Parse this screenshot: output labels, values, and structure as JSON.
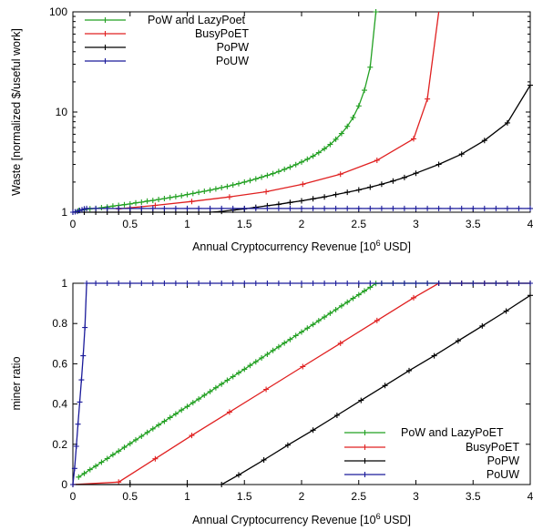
{
  "chart_data": [
    {
      "type": "line",
      "xlabel": "Annual Cryptocurrency Revenue [10",
      "xlabel_sup": "6",
      "xlabel_tail": " USD]",
      "ylabel": "Waste [normalized $/useful work]",
      "xlim": [
        0,
        4
      ],
      "ylim": [
        1,
        100
      ],
      "yscale": "log",
      "grid": false,
      "legend_position": "top-left",
      "x_ticks": [
        "0",
        "0.5",
        "1",
        "1.5",
        "2",
        "2.5",
        "3",
        "3.5",
        "4"
      ],
      "y_ticks": [
        "1",
        "10",
        "100"
      ],
      "series": [
        {
          "name": "PoW and LazyPoet",
          "color": "#22a022",
          "x": [
            0.05,
            0.1,
            0.15,
            0.2,
            0.25,
            0.3,
            0.35,
            0.4,
            0.45,
            0.5,
            0.55,
            0.6,
            0.65,
            0.7,
            0.75,
            0.8,
            0.85,
            0.9,
            0.95,
            1.0,
            1.05,
            1.1,
            1.15,
            1.2,
            1.25,
            1.3,
            1.35,
            1.4,
            1.45,
            1.5,
            1.55,
            1.6,
            1.65,
            1.7,
            1.75,
            1.8,
            1.85,
            1.9,
            1.95,
            2.0,
            2.05,
            2.1,
            2.15,
            2.2,
            2.25,
            2.3,
            2.35,
            2.4,
            2.45,
            2.5,
            2.55,
            2.6,
            2.65
          ],
          "y": [
            1.04,
            1.06,
            1.08,
            1.09,
            1.11,
            1.13,
            1.15,
            1.17,
            1.19,
            1.21,
            1.24,
            1.26,
            1.29,
            1.31,
            1.34,
            1.37,
            1.4,
            1.43,
            1.46,
            1.5,
            1.54,
            1.58,
            1.62,
            1.66,
            1.71,
            1.76,
            1.81,
            1.87,
            1.93,
            2.0,
            2.07,
            2.15,
            2.24,
            2.33,
            2.43,
            2.55,
            2.68,
            2.82,
            2.98,
            3.17,
            3.38,
            3.63,
            3.93,
            4.3,
            4.75,
            5.35,
            6.1,
            7.2,
            8.8,
            11.5,
            16.5,
            28,
            100
          ]
        },
        {
          "name": "BusyPoET",
          "color": "#e02020",
          "x": [
            0.4,
            0.72,
            1.04,
            1.37,
            1.69,
            2.01,
            2.34,
            2.66,
            2.98,
            3.1
          ],
          "y": [
            1.08,
            1.17,
            1.28,
            1.42,
            1.6,
            1.9,
            2.4,
            3.3,
            5.4,
            13.5
          ],
          "x_end": [
            3.1,
            3.2
          ],
          "y_end": [
            13.5,
            100
          ]
        },
        {
          "name": "PoPW",
          "color": "#000000",
          "x": [
            0.0,
            0.1,
            0.2,
            0.3,
            0.4,
            0.5,
            0.6,
            0.7,
            0.8,
            0.9,
            1.0,
            1.1,
            1.2,
            1.3,
            1.4,
            1.5,
            1.6,
            1.7,
            1.8,
            1.9,
            2.0,
            2.1,
            2.2,
            2.3,
            2.4,
            2.5,
            2.6,
            2.7,
            2.8,
            2.9,
            3.0,
            3.2,
            3.4,
            3.6,
            3.8,
            4.0
          ],
          "y": [
            1.0,
            1.0,
            1.0,
            1.0,
            1.0,
            1.0,
            1.0,
            1.0,
            1.0,
            1.0,
            1.0,
            1.0,
            1.0,
            1.02,
            1.05,
            1.08,
            1.12,
            1.16,
            1.2,
            1.25,
            1.3,
            1.36,
            1.42,
            1.5,
            1.58,
            1.67,
            1.78,
            1.9,
            2.05,
            2.22,
            2.45,
            3.0,
            3.8,
            5.2,
            7.8,
            18.5
          ]
        },
        {
          "name": "PoUW",
          "color": "#1a1a9a",
          "x": [
            0.0,
            0.02,
            0.04,
            0.06,
            0.08,
            0.1,
            0.12,
            0.2,
            0.3,
            0.4,
            0.5,
            0.6,
            0.7,
            0.8,
            0.9,
            1.0,
            1.1,
            1.2,
            1.3,
            1.4,
            1.5,
            1.6,
            1.7,
            1.8,
            1.9,
            2.0,
            2.1,
            2.2,
            2.3,
            2.4,
            2.5,
            2.6,
            2.7,
            2.8,
            2.9,
            3.0,
            3.1,
            3.2,
            3.3,
            3.4,
            3.5,
            3.6,
            3.7,
            3.8,
            3.9,
            4.0
          ],
          "y": [
            1.0,
            1.01,
            1.02,
            1.04,
            1.06,
            1.08,
            1.09,
            1.09,
            1.09,
            1.09,
            1.09,
            1.09,
            1.09,
            1.09,
            1.09,
            1.09,
            1.09,
            1.09,
            1.09,
            1.09,
            1.09,
            1.09,
            1.09,
            1.09,
            1.09,
            1.09,
            1.09,
            1.09,
            1.09,
            1.09,
            1.09,
            1.09,
            1.09,
            1.09,
            1.09,
            1.09,
            1.09,
            1.09,
            1.09,
            1.09,
            1.09,
            1.09,
            1.09,
            1.09,
            1.09,
            1.09
          ]
        }
      ]
    },
    {
      "type": "line",
      "xlabel": "Annual Cryptocurrency Revenue [10",
      "xlabel_sup": "6",
      "xlabel_tail": " USD]",
      "ylabel": "miner ratio",
      "xlim": [
        0,
        4
      ],
      "ylim": [
        0,
        1
      ],
      "yscale": "linear",
      "grid": false,
      "legend_position": "bottom-right",
      "x_ticks": [
        "0",
        "0.5",
        "1",
        "1.5",
        "2",
        "2.5",
        "3",
        "3.5",
        "4"
      ],
      "y_ticks": [
        "0",
        "0.2",
        "0.4",
        "0.6",
        "0.8",
        "1"
      ],
      "series": [
        {
          "name": "PoW and LazyPoET",
          "color": "#22a022",
          "x": [
            0.05,
            0.1,
            0.15,
            0.2,
            0.25,
            0.3,
            0.35,
            0.4,
            0.45,
            0.5,
            0.55,
            0.6,
            0.65,
            0.7,
            0.75,
            0.8,
            0.85,
            0.9,
            0.95,
            1.0,
            1.05,
            1.1,
            1.15,
            1.2,
            1.25,
            1.3,
            1.35,
            1.4,
            1.45,
            1.5,
            1.55,
            1.6,
            1.65,
            1.7,
            1.75,
            1.8,
            1.85,
            1.9,
            1.95,
            2.0,
            2.05,
            2.1,
            2.15,
            2.2,
            2.25,
            2.3,
            2.35,
            2.4,
            2.45,
            2.5,
            2.55,
            2.6,
            2.65,
            2.7,
            2.8,
            2.9,
            3.0,
            3.1,
            3.2,
            3.3,
            3.4,
            3.5,
            3.6,
            3.7,
            3.8,
            3.9,
            4.0
          ],
          "y": [
            0.037,
            0.055,
            0.074,
            0.092,
            0.111,
            0.129,
            0.148,
            0.166,
            0.185,
            0.203,
            0.222,
            0.24,
            0.259,
            0.277,
            0.296,
            0.314,
            0.333,
            0.351,
            0.37,
            0.388,
            0.407,
            0.425,
            0.444,
            0.462,
            0.481,
            0.499,
            0.518,
            0.536,
            0.555,
            0.573,
            0.592,
            0.61,
            0.629,
            0.647,
            0.666,
            0.684,
            0.703,
            0.721,
            0.74,
            0.758,
            0.777,
            0.795,
            0.814,
            0.832,
            0.851,
            0.869,
            0.888,
            0.906,
            0.925,
            0.943,
            0.962,
            0.98,
            0.999,
            1.0,
            1.0,
            1.0,
            1.0,
            1.0,
            1.0,
            1.0,
            1.0,
            1.0,
            1.0,
            1.0,
            1.0,
            1.0,
            1.0
          ]
        },
        {
          "name": "BusyPoET",
          "color": "#e02020",
          "x": [
            0.0,
            0.4,
            0.72,
            1.04,
            1.37,
            1.69,
            2.01,
            2.34,
            2.66,
            2.98,
            3.2,
            3.4,
            3.6,
            3.8,
            4.0
          ],
          "y": [
            0.0,
            0.012,
            0.128,
            0.244,
            0.36,
            0.473,
            0.586,
            0.702,
            0.815,
            0.928,
            1.0,
            1.0,
            1.0,
            1.0,
            1.0
          ]
        },
        {
          "name": "PoPW",
          "color": "#000000",
          "x": [
            0.0,
            0.5,
            1.0,
            1.3,
            1.45,
            1.67,
            1.88,
            2.1,
            2.31,
            2.52,
            2.73,
            2.94,
            3.16,
            3.37,
            3.58,
            3.79,
            4.0
          ],
          "y": [
            0.0,
            0.0,
            0.0,
            0.0,
            0.048,
            0.122,
            0.196,
            0.27,
            0.344,
            0.418,
            0.492,
            0.566,
            0.64,
            0.714,
            0.788,
            0.862,
            0.94
          ]
        },
        {
          "name": "PoUW",
          "color": "#1a1a9a",
          "x": [
            0.0,
            0.015,
            0.03,
            0.045,
            0.06,
            0.075,
            0.09,
            0.105,
            0.12,
            0.2,
            0.3,
            0.4,
            0.5,
            0.6,
            0.7,
            0.8,
            0.9,
            1.0,
            1.1,
            1.2,
            1.3,
            1.4,
            1.5,
            1.6,
            1.7,
            1.8,
            1.9,
            2.0,
            2.1,
            2.2,
            2.3,
            2.4,
            2.5,
            2.6,
            2.7,
            2.8,
            2.9,
            3.0,
            3.1,
            3.2,
            3.3,
            3.4,
            3.5,
            3.6,
            3.7,
            3.8,
            3.9,
            4.0
          ],
          "y": [
            0.0,
            0.08,
            0.19,
            0.3,
            0.41,
            0.52,
            0.64,
            0.78,
            1.0,
            1.0,
            1.0,
            1.0,
            1.0,
            1.0,
            1.0,
            1.0,
            1.0,
            1.0,
            1.0,
            1.0,
            1.0,
            1.0,
            1.0,
            1.0,
            1.0,
            1.0,
            1.0,
            1.0,
            1.0,
            1.0,
            1.0,
            1.0,
            1.0,
            1.0,
            1.0,
            1.0,
            1.0,
            1.0,
            1.0,
            1.0,
            1.0,
            1.0,
            1.0,
            1.0,
            1.0,
            1.0,
            1.0,
            1.0
          ]
        }
      ]
    }
  ]
}
